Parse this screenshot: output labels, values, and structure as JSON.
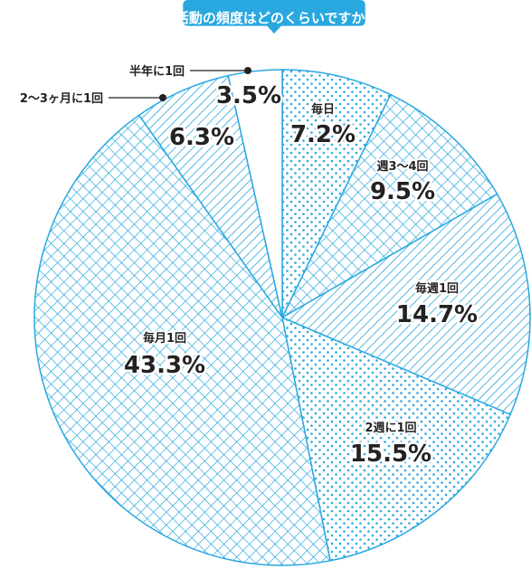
{
  "chart_data": {
    "type": "pie",
    "title": "活動の頻度はどのくらいですか?",
    "accent_color": "#29a8e0",
    "slices": [
      {
        "label": "毎日",
        "value": 7.2,
        "value_label": "7.2%",
        "pattern": "dots"
      },
      {
        "label": "週3〜4回",
        "value": 9.5,
        "value_label": "9.5%",
        "pattern": "crosshatch"
      },
      {
        "label": "毎週1回",
        "value": 14.7,
        "value_label": "14.7%",
        "pattern": "diagonal"
      },
      {
        "label": "2週に1回",
        "value": 15.5,
        "value_label": "15.5%",
        "pattern": "dots"
      },
      {
        "label": "毎月1回",
        "value": 43.3,
        "value_label": "43.3%",
        "pattern": "crosshatch"
      },
      {
        "label": "2〜3ヶ月に1回",
        "value": 6.3,
        "value_label": "6.3%",
        "pattern": "diagonal"
      },
      {
        "label": "半年に1回",
        "value": 3.5,
        "value_label": "3.5%",
        "pattern": "none"
      }
    ]
  }
}
